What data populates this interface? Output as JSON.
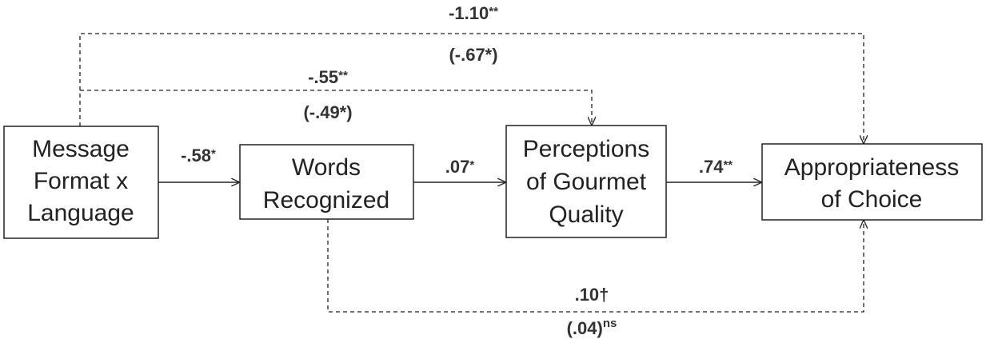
{
  "nodes": [
    {
      "lines": [
        "Message",
        "Format x",
        "Language"
      ]
    },
    {
      "lines": [
        "Words",
        "Recognized"
      ]
    },
    {
      "lines": [
        "Perceptions",
        "of Gourmet",
        "Quality"
      ]
    },
    {
      "lines": [
        "Appropriateness",
        "of Choice"
      ]
    }
  ],
  "edges": [
    {
      "coef": "-.58",
      "sig": "*"
    },
    {
      "coef": ".07",
      "sig": "*"
    },
    {
      "coef": ".74",
      "sig": "**"
    },
    {
      "coef": "-1.10",
      "sig": "**",
      "paren": "(-.67*)"
    },
    {
      "coef": "-.55",
      "sig": "**",
      "paren": "(-.49*)"
    },
    {
      "coef": ".10†",
      "paren": "(.04)",
      "paren_sig": "ns"
    }
  ]
}
